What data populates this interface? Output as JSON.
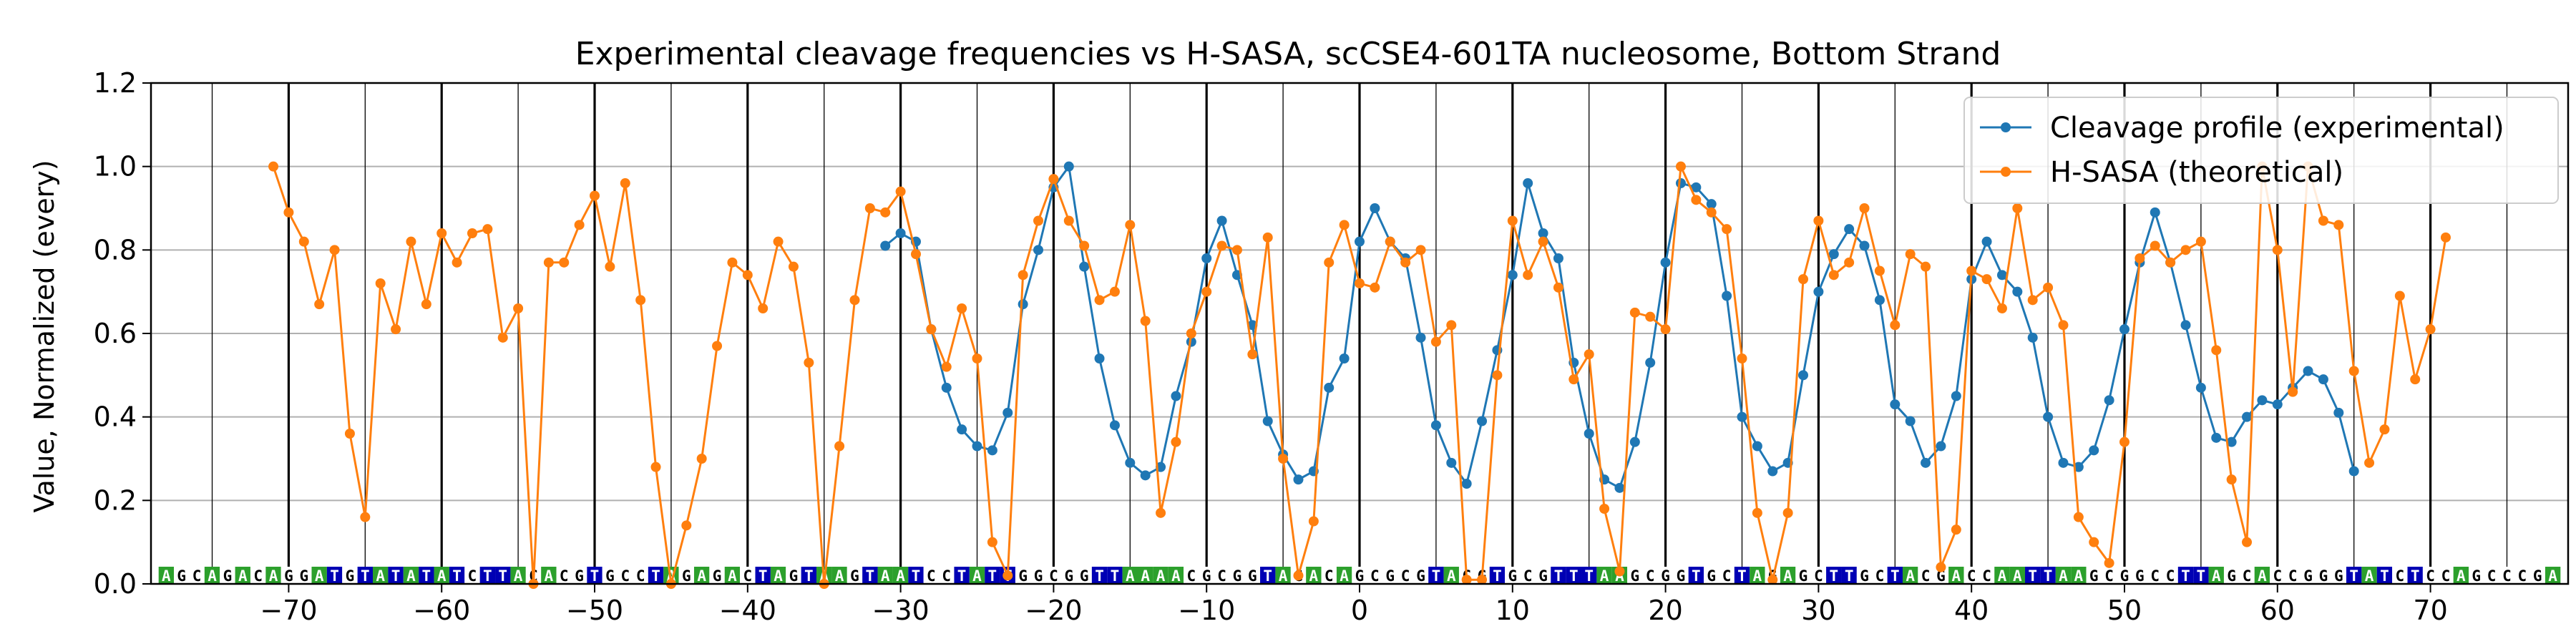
{
  "chart_data": {
    "type": "line",
    "title": "Experimental cleavage frequencies vs H-SASA, scCSE4-601TA nucleosome, Bottom Strand",
    "xlabel": "",
    "ylabel": "Value, Normalized (every)",
    "xlim": [
      -79,
      79
    ],
    "ylim": [
      0,
      1.2
    ],
    "xticks": [
      -70,
      -60,
      -50,
      -40,
      -30,
      -20,
      -10,
      0,
      10,
      20,
      30,
      40,
      50,
      60,
      70
    ],
    "yticks": [
      0.0,
      0.2,
      0.4,
      0.6,
      0.8,
      1.0,
      1.2
    ],
    "ytick_labels": [
      "0.0",
      "0.2",
      "0.4",
      "0.6",
      "0.8",
      "1.0",
      "1.2"
    ],
    "grid": true,
    "legend_position": "top-right",
    "sequence_start": -78,
    "sequence": "AGCAGACAGGATGTATATATCTTACACGTGCCTAGAGACTAGTAAGTAATCCTATTGGCGGTTAAAACGCGGTAGACAGCGCGTACGTGCGTTTAAGCGGTGCTAGAGCTTGCTACGACCAATTAAGCGGCCTTAGCACCGGGTATCTCCAGCCCGA",
    "base_colors": {
      "A": "#2ca02c",
      "T": "#0000b4",
      "C": "#ffffff",
      "G": "#ffffff"
    },
    "series": [
      {
        "name": "Cleavage profile (experimental)",
        "color": "#1f77b4",
        "x_start": -31,
        "values": [
          0.81,
          0.84,
          0.82,
          0.61,
          0.47,
          0.37,
          0.33,
          0.32,
          0.41,
          0.67,
          0.8,
          0.95,
          1.0,
          0.76,
          0.54,
          0.38,
          0.29,
          0.26,
          0.28,
          0.45,
          0.58,
          0.78,
          0.87,
          0.74,
          0.62,
          0.39,
          0.31,
          0.25,
          0.27,
          0.47,
          0.54,
          0.82,
          0.9,
          0.82,
          0.78,
          0.59,
          0.38,
          0.29,
          0.24,
          0.39,
          0.56,
          0.74,
          0.96,
          0.84,
          0.78,
          0.53,
          0.36,
          0.25,
          0.23,
          0.34,
          0.53,
          0.77,
          0.96,
          0.95,
          0.91,
          0.69,
          0.4,
          0.33,
          0.27,
          0.29,
          0.5,
          0.7,
          0.79,
          0.85,
          0.81,
          0.68,
          0.43,
          0.39,
          0.29,
          0.33,
          0.45,
          0.73,
          0.82,
          0.74,
          0.7,
          0.59,
          0.4,
          0.29,
          0.28,
          0.32,
          0.44,
          0.61,
          0.77,
          0.89,
          0.77,
          0.62,
          0.47,
          0.35,
          0.34,
          0.4,
          0.44,
          0.43,
          0.47,
          0.51,
          0.49,
          0.41,
          0.27
        ]
      },
      {
        "name": "H-SASA (theoretical)",
        "color": "#ff7f0e",
        "x_start": -71,
        "values": [
          1.0,
          0.89,
          0.82,
          0.67,
          0.8,
          0.36,
          0.16,
          0.72,
          0.61,
          0.82,
          0.67,
          0.84,
          0.77,
          0.84,
          0.85,
          0.59,
          0.66,
          0.0,
          0.77,
          0.77,
          0.86,
          0.93,
          0.76,
          0.96,
          0.68,
          0.28,
          0.0,
          0.14,
          0.3,
          0.57,
          0.77,
          0.74,
          0.66,
          0.82,
          0.76,
          0.53,
          0.0,
          0.33,
          0.68,
          0.9,
          0.89,
          0.94,
          0.79,
          0.61,
          0.52,
          0.66,
          0.54,
          0.1,
          0.02,
          0.74,
          0.87,
          0.97,
          0.87,
          0.81,
          0.68,
          0.7,
          0.86,
          0.63,
          0.17,
          0.34,
          0.6,
          0.7,
          0.81,
          0.8,
          0.55,
          0.83,
          0.3,
          0.02,
          0.15,
          0.77,
          0.86,
          0.72,
          0.71,
          0.82,
          0.77,
          0.8,
          0.58,
          0.62,
          0.01,
          0.01,
          0.5,
          0.87,
          0.74,
          0.82,
          0.71,
          0.49,
          0.55,
          0.18,
          0.03,
          0.65,
          0.64,
          0.61,
          1.0,
          0.92,
          0.89,
          0.85,
          0.54,
          0.17,
          0.01,
          0.17,
          0.73,
          0.87,
          0.74,
          0.77,
          0.9,
          0.75,
          0.62,
          0.79,
          0.76,
          0.04,
          0.13,
          0.75,
          0.73,
          0.66,
          0.9,
          0.68,
          0.71,
          0.62,
          0.16,
          0.1,
          0.05,
          0.34,
          0.78,
          0.81,
          0.77,
          0.8,
          0.82,
          0.56,
          0.25,
          0.1,
          1.0,
          0.8,
          0.46,
          1.0,
          0.87,
          0.86,
          0.51,
          0.29,
          0.37,
          0.69,
          0.49,
          0.61,
          0.83
        ]
      }
    ]
  }
}
